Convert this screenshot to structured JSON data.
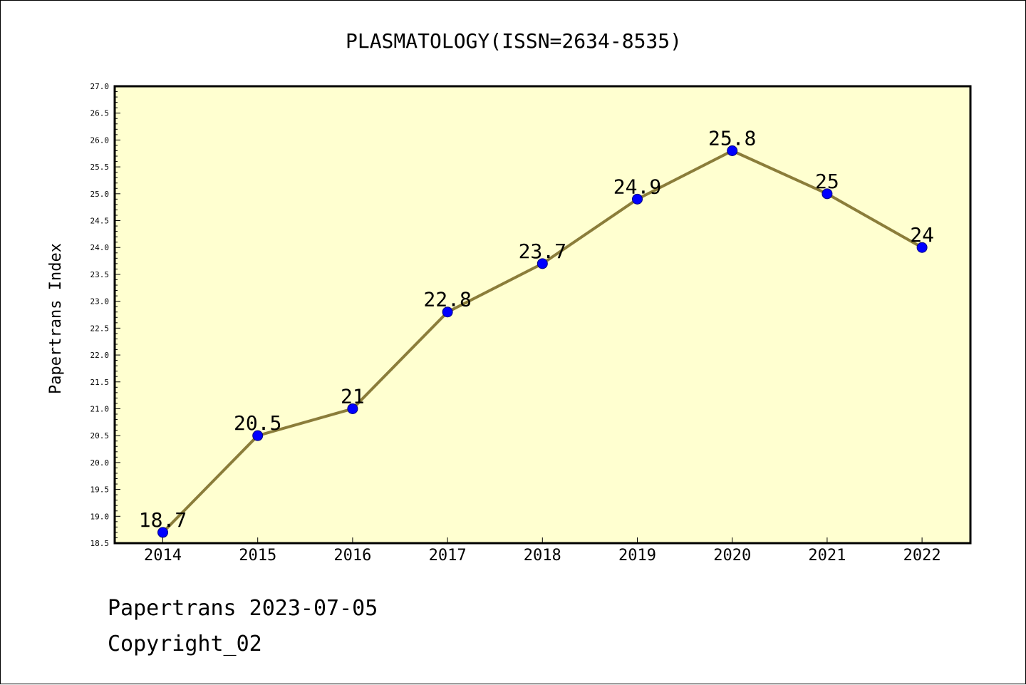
{
  "footer": {
    "date_line": "Papertrans 2023-07-05",
    "copyright_line": "Copyright_02"
  },
  "colors": {
    "figure_background": "#ffffff",
    "plot_background": "#ffffd0",
    "line": "#8b7d3a",
    "marker_fill": "#0000ff",
    "marker_edge": "#000080",
    "text": "#000000"
  },
  "chart_data": {
    "type": "line",
    "title": "PLASMATOLOGY(ISSN=2634-8535)",
    "xlabel": "",
    "ylabel": "Papertrans Index",
    "categories": [
      "2014",
      "2015",
      "2016",
      "2017",
      "2018",
      "2019",
      "2020",
      "2021",
      "2022"
    ],
    "series": [
      {
        "values": [
          18.7,
          20.5,
          21,
          22.8,
          23.7,
          24.9,
          25.8,
          25,
          24
        ],
        "data_labels": [
          "18.7",
          "20.5",
          "21",
          "22.8",
          "23.7",
          "24.9",
          "25.8",
          "25",
          "24"
        ]
      }
    ],
    "ylim": [
      18.5,
      27.0
    ],
    "y_ticks": [
      "18.5",
      "19.0",
      "19.5",
      "20.0",
      "20.5",
      "21.0",
      "21.5",
      "22.0",
      "22.5",
      "23.0",
      "23.5",
      "24.0",
      "24.5",
      "25.0",
      "25.5",
      "26.0",
      "26.5",
      "27.0"
    ],
    "grid": false,
    "legend": "none"
  }
}
